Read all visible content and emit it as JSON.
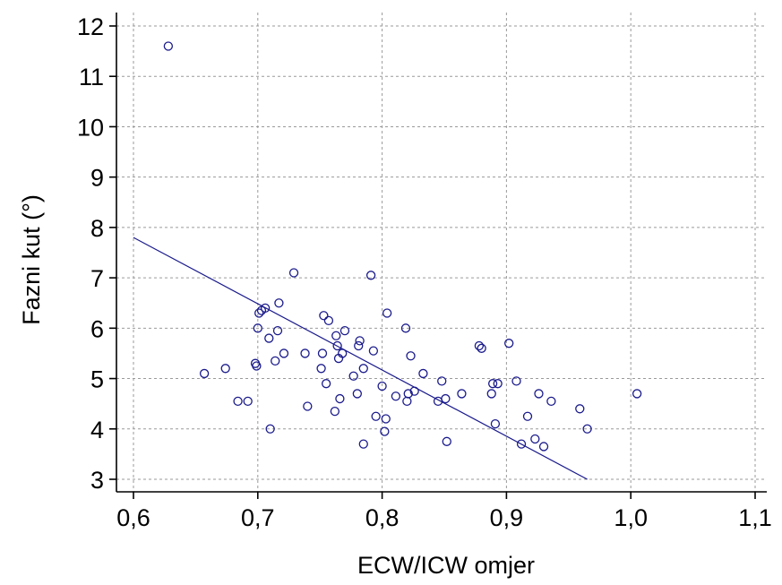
{
  "chart_data": {
    "type": "scatter",
    "xlabel": "ECW/ICW omjer",
    "ylabel": "Fazni kut (°)",
    "xlim": [
      0.6,
      1.1
    ],
    "ylim": [
      3,
      12
    ],
    "xticks": [
      0.6,
      0.7,
      0.8,
      0.9,
      1.0,
      1.1
    ],
    "xtick_labels": [
      "0,6",
      "0,7",
      "0,8",
      "0,9",
      "1,0",
      "1,1"
    ],
    "yticks": [
      3,
      4,
      5,
      6,
      7,
      8,
      9,
      10,
      11,
      12
    ],
    "ytick_labels": [
      "3",
      "4",
      "5",
      "6",
      "7",
      "8",
      "9",
      "10",
      "11",
      "12"
    ],
    "grid": true,
    "series": [
      {
        "marker": "open-circle",
        "color": "#1a1a8c",
        "x": [
          0.628,
          0.657,
          0.674,
          0.684,
          0.692,
          0.698,
          0.699,
          0.7,
          0.701,
          0.703,
          0.706,
          0.709,
          0.71,
          0.714,
          0.716,
          0.717,
          0.721,
          0.729,
          0.738,
          0.74,
          0.751,
          0.752,
          0.753,
          0.755,
          0.757,
          0.762,
          0.763,
          0.764,
          0.765,
          0.766,
          0.768,
          0.77,
          0.777,
          0.78,
          0.781,
          0.782,
          0.785,
          0.785,
          0.791,
          0.793,
          0.795,
          0.8,
          0.802,
          0.803,
          0.804,
          0.811,
          0.819,
          0.82,
          0.821,
          0.823,
          0.826,
          0.833,
          0.845,
          0.848,
          0.851,
          0.852,
          0.864,
          0.878,
          0.88,
          0.888,
          0.889,
          0.891,
          0.893,
          0.902,
          0.908,
          0.912,
          0.917,
          0.923,
          0.926,
          0.93,
          0.936,
          0.959,
          0.965,
          1.005
        ],
        "y": [
          11.6,
          5.1,
          5.2,
          4.55,
          4.55,
          5.3,
          5.25,
          6.0,
          6.3,
          6.35,
          6.4,
          5.8,
          4.0,
          5.35,
          5.95,
          6.5,
          5.5,
          7.1,
          5.5,
          4.45,
          5.2,
          5.5,
          6.25,
          4.9,
          6.15,
          4.35,
          5.85,
          5.65,
          5.4,
          4.6,
          5.5,
          5.95,
          5.05,
          4.7,
          5.65,
          5.75,
          5.2,
          3.7,
          7.05,
          5.55,
          4.25,
          4.85,
          3.95,
          4.2,
          6.3,
          4.65,
          6.0,
          4.55,
          4.7,
          5.45,
          4.75,
          5.1,
          4.55,
          4.95,
          4.6,
          3.75,
          4.7,
          5.65,
          5.6,
          4.7,
          4.9,
          4.1,
          4.9,
          5.7,
          4.95,
          3.7,
          4.25,
          3.8,
          4.7,
          3.65,
          4.55,
          4.4,
          4.0,
          4.7
        ]
      }
    ],
    "fit_line": {
      "x": [
        0.6,
        0.965
      ],
      "y": [
        7.8,
        3.0
      ]
    }
  }
}
